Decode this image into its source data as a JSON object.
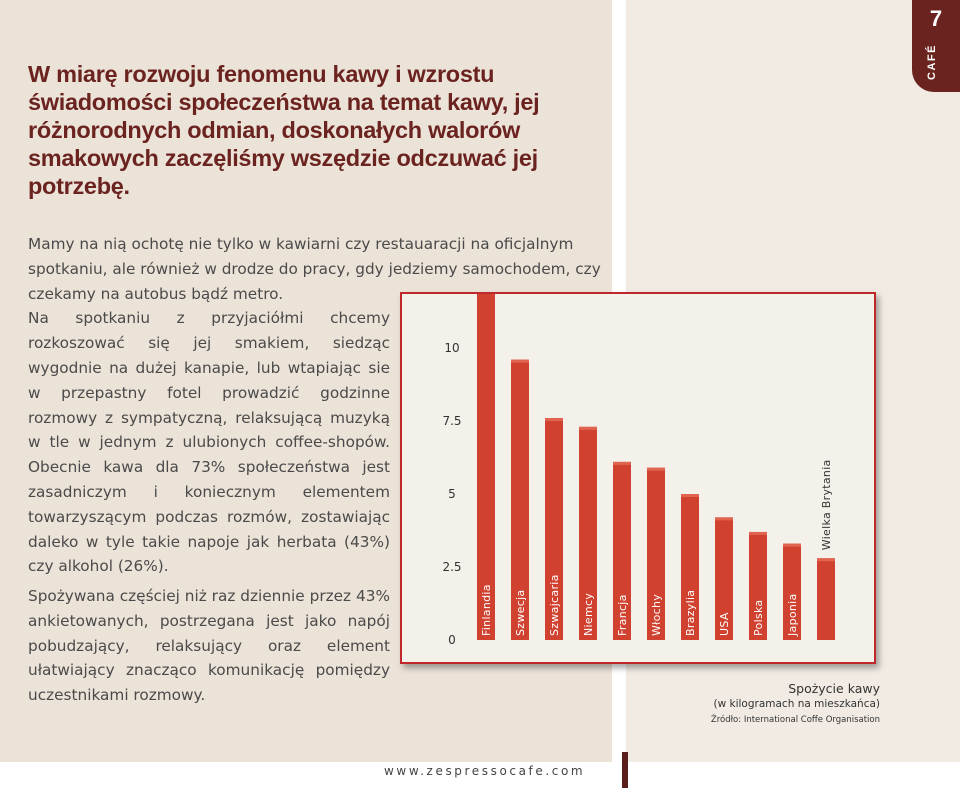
{
  "header": {
    "page_number": "7",
    "section_label": "CAFÉ"
  },
  "headline": "W miarę rozwoju fenomenu kawy i wzrostu świadomości społeczeństwa na temat kawy, jej różnorodnych odmian, doskonałych walorów smakowych zaczęliśmy wszędzie odczuwać jej potrzebę.",
  "article": {
    "para1_wide": "Mamy na nią ochotę nie tylko w kawiarni czy restauaracji na oficjalnym spotkaniu, ale również w drodze do pracy, gdy jedziemy samochodem, czy czekamy na autobus bądź metro.",
    "para1_narrow": "Na spotkaniu z przyjaciółmi chcemy rozkoszować się jej smakiem, siedząc wygodnie na dużej kanapie, lub wtapiając sie w przepastny fotel prowadzić godzinne rozmowy z sympatyczną, relaksującą muzyką w tle w jednym z ulubionych coffee-shopów. Obecnie kawa dla 73% społeczeństwa jest zasadniczym i koniecznym elementem towarzyszącym podczas rozmów, zostawiając daleko w tyle takie napoje jak herbata (43%) czy alkohol (26%).",
    "para2": "Spożywana częściej niż raz dziennie przez 43% ankietowanych, postrzegana jest jako napój pobudzający, relaksujący oraz element ułatwiający znacząco komunikację pomiędzy uczestnikami rozmowy."
  },
  "chart_caption": {
    "title": "Spożycie kawy",
    "subtitle": "(w kilogramach na mieszkańca)",
    "source": "Źródło: International Coffe Organisation"
  },
  "footer": {
    "url": "www.zespressocafe.com"
  },
  "colors": {
    "accent": "#6b2320",
    "bar": "#d0412f",
    "chart_border": "#c0292b"
  },
  "chart_data": {
    "type": "bar",
    "title": "Spożycie kawy",
    "subtitle": "(w kilogramach na mieszkańca)",
    "categories": [
      "Finlandia",
      "Szwecja",
      "Szwajcaria",
      "Niemcy",
      "Francja",
      "Włochy",
      "Brazylia",
      "USA",
      "Polska",
      "Japonia",
      "Wielka Brytania"
    ],
    "values": [
      12.0,
      9.6,
      7.6,
      7.3,
      6.1,
      5.9,
      5.0,
      4.2,
      3.7,
      3.3,
      2.8
    ],
    "yticks": [
      "0",
      "2.5",
      "5",
      "7.5",
      "10"
    ],
    "ylim": [
      0,
      12
    ],
    "grid": false,
    "legend": "none"
  }
}
